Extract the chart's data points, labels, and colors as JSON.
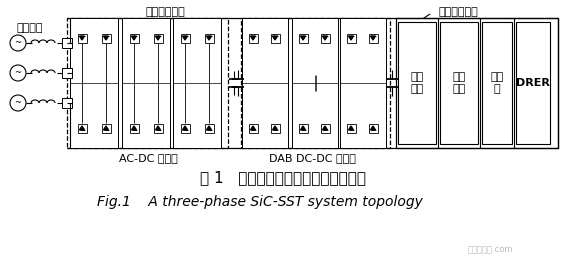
{
  "bg_color": "#ffffff",
  "title1": "图 1   三相碳化硅固态变压器系统结构",
  "title2": "Fig.1    A three-phase SiC-SST system topology",
  "label_acdc": "AC-DC 整流器",
  "label_dabdc": "DAB DC-DC 变换器",
  "label_hv_bus": "高压直流母线",
  "label_lv_bus": "低压直流母线",
  "label_acgrid": "交流电网",
  "label_storage": "储能\n设备",
  "label_dcload": "直流\n负载",
  "label_inverter": "逆变器",
  "label_drer": "DRER",
  "title1_fontsize": 11,
  "title2_fontsize": 10,
  "label_fontsize": 8,
  "small_fontsize": 7
}
